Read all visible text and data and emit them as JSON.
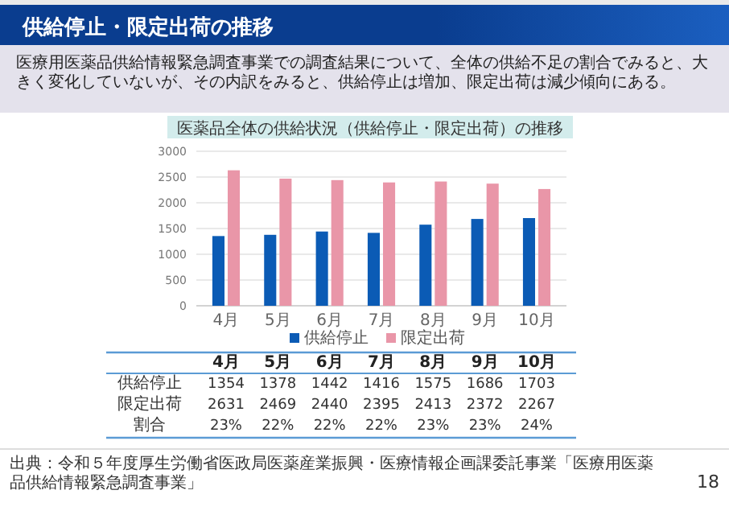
{
  "chart_data": {
    "type": "bar",
    "title": "供給停止・限定出荷の推移",
    "subtitle": "医療用医薬品供給情報緊急調査事業での調査結果について、全体の供給不足の割合でみると、大きく変化していないが、その内訳をみると、供給停止は増加、限定出荷は減少傾向にある。",
    "categories": [
      "4月",
      "5月",
      "6月",
      "7月",
      "8月",
      "9月",
      "10月"
    ],
    "series": [
      {
        "name": "供給停止",
        "color": "#0b5bb5",
        "values": [
          1354,
          1378,
          1442,
          1416,
          1575,
          1686,
          1703
        ],
        "value_labels": [
          "1354",
          "1378",
          "1442",
          "1416",
          "1575",
          "1686",
          "1703"
        ]
      },
      {
        "name": "限定出荷",
        "color": "#e996a8",
        "values": [
          2631,
          2469,
          2440,
          2395,
          2413,
          2372,
          2267
        ],
        "value_labels": [
          "2631",
          "2469",
          "2440",
          "2395",
          "2413",
          "2372",
          "2267"
        ]
      }
    ],
    "ylim": [
      0,
      3000
    ],
    "yticks": [
      0,
      500,
      1000,
      1500,
      2000,
      2500,
      3000
    ],
    "grid": "y",
    "legend": "bottom",
    "annotations": [
      "医薬品全体の供給状況（供給停止・限定出荷）の推移",
      "割合",
      "23%",
      "22%",
      "22%",
      "22%",
      "23%",
      "23%",
      "24%",
      "出典：令和５年度厚生労働省医政局医薬産業振興・医療情報企画課委託事業「医療用医薬品供給情報緊急調査事業」",
      "18"
    ]
  }
}
